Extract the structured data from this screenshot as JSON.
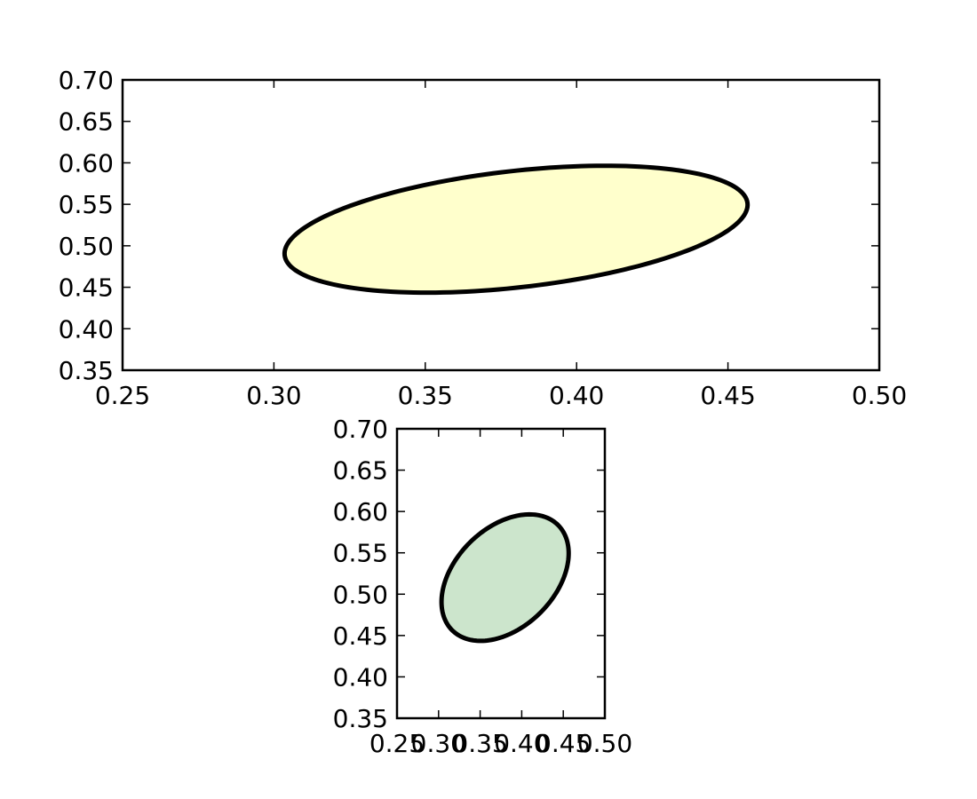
{
  "chart_data": [
    {
      "type": "ellipse",
      "title": "",
      "xlabel": "",
      "ylabel": "",
      "xlim": [
        0.25,
        0.5
      ],
      "ylim": [
        0.35,
        0.7
      ],
      "xticks": [
        "0.25",
        "0.30",
        "0.35",
        "0.40",
        "0.45",
        "0.50"
      ],
      "yticks": [
        "0.35",
        "0.40",
        "0.45",
        "0.50",
        "0.55",
        "0.60",
        "0.65",
        "0.70"
      ],
      "grid": false,
      "ellipse": {
        "center": [
          0.38,
          0.52
        ],
        "width": 0.18,
        "height": 0.12,
        "angle_deg": 45
      },
      "fill_color": "#ffffcc",
      "edge_color": "#000000"
    },
    {
      "type": "ellipse",
      "title": "",
      "xlabel": "",
      "ylabel": "",
      "xlim": [
        0.25,
        0.5
      ],
      "ylim": [
        0.35,
        0.7
      ],
      "xticks": [
        "0.25",
        "0.30",
        "0.35",
        "0.40",
        "0.45",
        "0.50"
      ],
      "yticks": [
        "0.35",
        "0.40",
        "0.45",
        "0.50",
        "0.55",
        "0.60",
        "0.65",
        "0.70"
      ],
      "grid": false,
      "ellipse": {
        "center": [
          0.38,
          0.52
        ],
        "width": 0.18,
        "height": 0.12,
        "angle_deg": 45
      },
      "fill_color": "#cce5cc",
      "edge_color": "#000000"
    }
  ]
}
